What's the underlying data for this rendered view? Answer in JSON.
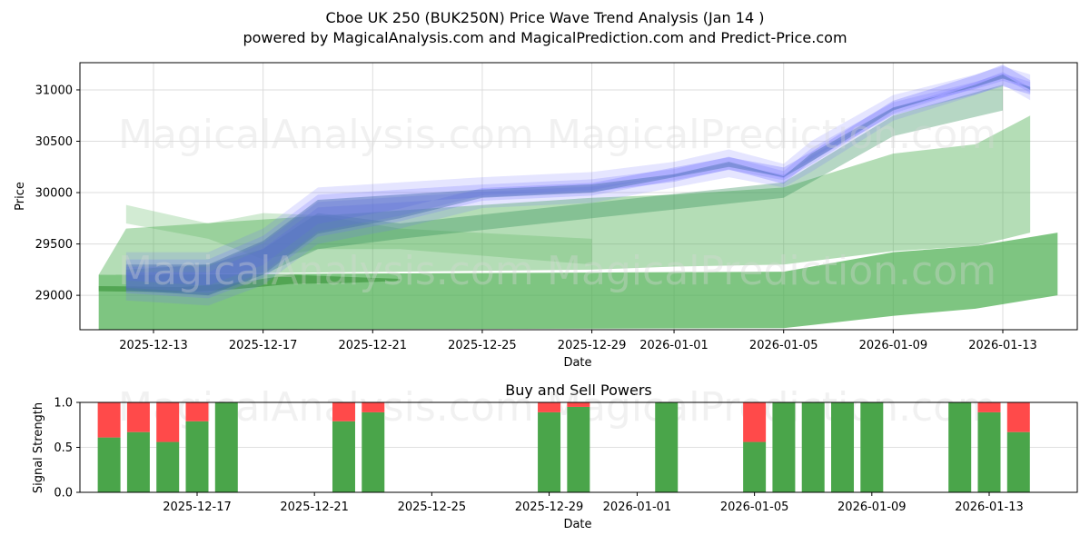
{
  "header": {
    "title": "Cboe UK 250 (BUK250N) Price Wave Trend Analysis (Jan 14 )",
    "subtitle": "powered by MagicalAnalysis.com and MagicalPrediction.com and Predict-Price.com"
  },
  "watermarks": [
    "MagicalAnalysis.com",
    "MagicalPrediction.com"
  ],
  "colors": {
    "buy": "#4aa54a",
    "sell": "#ff4a4a",
    "forecast_blue": "#6e6eff",
    "forecast_green": "#4caf50"
  },
  "chart_data": [
    {
      "type": "area",
      "title": "Cboe UK 250 (BUK250N) Price Wave Trend Analysis (Jan 14 )",
      "xlabel": "Date",
      "ylabel": "Price",
      "ylim": [
        28665,
        31265
      ],
      "yticks": [
        29000,
        29500,
        30000,
        30500,
        31000
      ],
      "xticks": [
        "2025-12-13",
        "2025-12-17",
        "2025-12-21",
        "2025-12-25",
        "2025-12-29",
        "2026-01-01",
        "2026-01-05",
        "2026-01-09",
        "2026-01-13"
      ],
      "grid": true,
      "series": [
        {
          "name": "blue wave band (upper)",
          "x": [
            "2025-12-12",
            "2025-12-15",
            "2025-12-17",
            "2025-12-19",
            "2025-12-22",
            "2025-12-25",
            "2025-12-29",
            "2026-01-01",
            "2026-01-03",
            "2026-01-05",
            "2026-01-06",
            "2026-01-09",
            "2026-01-12",
            "2026-01-13",
            "2026-01-14"
          ],
          "values": [
            29420,
            29420,
            29650,
            30050,
            30100,
            30150,
            30200,
            30300,
            30420,
            30280,
            30500,
            30950,
            31150,
            31230,
            31150
          ]
        },
        {
          "name": "blue wave band (lower)",
          "x": [
            "2025-12-12",
            "2025-12-15",
            "2025-12-17",
            "2025-12-19",
            "2025-12-22",
            "2025-12-25",
            "2025-12-29",
            "2026-01-01",
            "2026-01-03",
            "2026-01-05",
            "2026-01-06",
            "2026-01-09",
            "2026-01-12",
            "2026-01-13",
            "2026-01-14"
          ],
          "values": [
            28950,
            28900,
            29100,
            29500,
            29650,
            29850,
            29900,
            30050,
            30150,
            30050,
            30200,
            30700,
            30950,
            31050,
            30900
          ]
        },
        {
          "name": "green band upper",
          "x": [
            "2025-12-12",
            "2025-12-29",
            "2026-01-01",
            "2026-01-05",
            "2026-01-09",
            "2026-01-12",
            "2026-01-14"
          ],
          "values": [
            29650,
            29950,
            29980,
            30050,
            30380,
            30470,
            30750
          ]
        },
        {
          "name": "green band lower",
          "x": [
            "2025-12-11",
            "2025-12-29",
            "2026-01-01",
            "2026-01-05",
            "2026-01-09",
            "2026-01-12",
            "2026-01-14"
          ],
          "values": [
            29200,
            29250,
            29280,
            29300,
            29430,
            29480,
            29610
          ]
        },
        {
          "name": "green base band",
          "x": [
            "2025-12-11",
            "2026-01-05",
            "2026-01-09",
            "2026-01-12",
            "2026-01-15"
          ],
          "values": [
            28665,
            28680,
            28800,
            28870,
            29000
          ]
        }
      ]
    },
    {
      "type": "bar",
      "title": "Buy and Sell Powers",
      "xlabel": "Date",
      "ylabel": "Signal Strength",
      "ylim": [
        0,
        1
      ],
      "yticks": [
        "0.0",
        "0.5",
        "1.0"
      ],
      "xticks": [
        "2025-12-17",
        "2025-12-21",
        "2025-12-25",
        "2025-12-29",
        "2026-01-01",
        "2026-01-05",
        "2026-01-09",
        "2026-01-13"
      ],
      "categories": [
        "2025-12-14",
        "2025-12-15",
        "2025-12-16",
        "2025-12-17",
        "2025-12-18",
        "2025-12-22",
        "2025-12-23",
        "2025-12-29",
        "2025-12-30",
        "2026-01-02",
        "2026-01-05",
        "2026-01-06",
        "2026-01-07",
        "2026-01-08",
        "2026-01-09",
        "2026-01-12",
        "2026-01-13",
        "2026-01-14"
      ],
      "series": [
        {
          "name": "Buy",
          "color": "#4aa54a",
          "values": [
            0.61,
            0.67,
            0.56,
            0.79,
            1.0,
            0.79,
            0.89,
            0.89,
            0.95,
            1.0,
            0.56,
            1.0,
            1.0,
            1.0,
            1.0,
            1.0,
            0.89,
            0.67
          ]
        },
        {
          "name": "Sell",
          "color": "#ff4a4a",
          "values": [
            0.39,
            0.33,
            0.44,
            0.21,
            0.0,
            0.21,
            0.11,
            0.11,
            0.05,
            0.0,
            0.44,
            0.0,
            0.0,
            0.0,
            0.0,
            0.0,
            0.11,
            0.33
          ]
        }
      ]
    }
  ]
}
